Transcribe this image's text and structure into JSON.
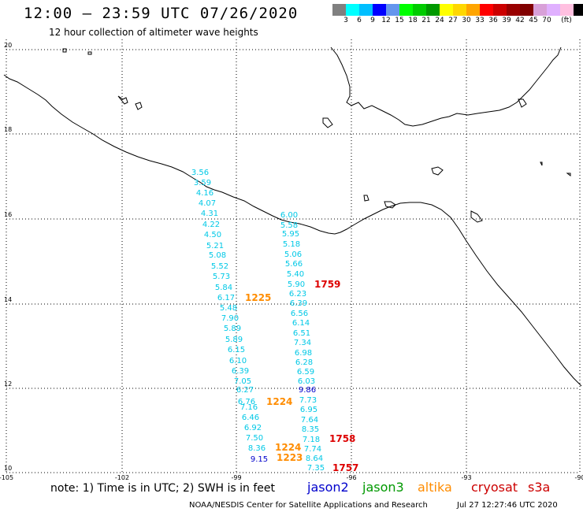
{
  "header": {
    "title": "12:00 – 23:59 UTC 07/26/2020",
    "subtitle": "12 hour collection of altimeter wave heights"
  },
  "colorbar": {
    "colors": [
      "#808080",
      "#00ffff",
      "#00bfff",
      "#0000ff",
      "#6495ed",
      "#00ff00",
      "#00cc00",
      "#009900",
      "#ffff00",
      "#ffd700",
      "#ffa500",
      "#ff0000",
      "#cc0000",
      "#990000",
      "#800000",
      "#d8a0d8",
      "#e0b0ff",
      "#ffc0e0",
      "#000000"
    ],
    "labels": [
      "3",
      "6",
      "9",
      "12",
      "15",
      "18",
      "21",
      "24",
      "27",
      "30",
      "33",
      "36",
      "39",
      "42",
      "45",
      "70",
      "(ft)"
    ]
  },
  "map": {
    "lat_labels": [
      "20",
      "18",
      "16",
      "14",
      "12",
      "10"
    ],
    "lon_labels": [
      "-105",
      "-102",
      "-99",
      "-96",
      "-93",
      "-90"
    ]
  },
  "tracks": [
    {
      "color": "#00c8e6",
      "points": [
        [
          "3.56",
          254,
          222
        ],
        [
          "3.59",
          257,
          235
        ],
        [
          "4.16",
          260,
          248
        ],
        [
          "4.07",
          263,
          261
        ],
        [
          "4.31",
          266,
          274
        ],
        [
          "4.22",
          268,
          288
        ],
        [
          "4.50",
          270,
          301
        ],
        [
          "5.21",
          273,
          315
        ],
        [
          "5.08",
          276,
          327
        ],
        [
          "5.52",
          279,
          341
        ],
        [
          "5.73",
          281,
          354
        ],
        [
          "5.84",
          284,
          368
        ],
        [
          "6.17",
          287,
          381
        ],
        [
          "5.48",
          290,
          394
        ],
        [
          "7.90",
          292,
          407
        ],
        [
          "5.89",
          295,
          420
        ],
        [
          "5.89",
          297,
          434
        ],
        [
          "6.15",
          300,
          447
        ],
        [
          "6.10",
          302,
          461
        ],
        [
          "6.39",
          305,
          474
        ],
        [
          "7.05",
          308,
          487
        ],
        [
          "6.27",
          311,
          498
        ],
        [
          "6.76",
          313,
          513
        ],
        [
          "7.16",
          316,
          520
        ],
        [
          "6.46",
          318,
          533
        ],
        [
          "6.92",
          321,
          546
        ],
        [
          "7.50",
          323,
          559
        ],
        [
          "8.36",
          326,
          572
        ]
      ]
    },
    {
      "color": "#00c8e6",
      "points": [
        [
          "6.00",
          367,
          276
        ],
        [
          "5.58",
          367,
          289
        ],
        [
          "5.95",
          369,
          300
        ],
        [
          "5.18",
          370,
          313
        ],
        [
          "5.06",
          372,
          326
        ],
        [
          "5.66",
          373,
          338
        ],
        [
          "5.40",
          375,
          351
        ],
        [
          "5.90",
          376,
          364
        ],
        [
          "6.23",
          378,
          376
        ],
        [
          "6.39",
          379,
          388
        ],
        [
          "6.56",
          380,
          401
        ],
        [
          "6.14",
          382,
          413
        ],
        [
          "6.51",
          383,
          426
        ],
        [
          "7.34",
          384,
          438
        ],
        [
          "6.98",
          385,
          451
        ],
        [
          "6.28",
          386,
          463
        ],
        [
          "6.59",
          388,
          475
        ],
        [
          "6.03",
          389,
          487
        ],
        [
          "9.86",
          390,
          498
        ],
        [
          "7.73",
          391,
          511
        ],
        [
          "6.95",
          392,
          523
        ],
        [
          "7.64",
          393,
          536
        ],
        [
          "8.35",
          394,
          548
        ],
        [
          "7.18",
          395,
          561
        ],
        [
          "7.74",
          397,
          573
        ],
        [
          "8.64",
          399,
          585
        ],
        [
          "7.35",
          401,
          597
        ]
      ]
    }
  ],
  "dark_blue_labels": [
    [
      "9.15",
      329,
      586
    ],
    [
      "9.86",
      390,
      498
    ]
  ],
  "time_labels": [
    {
      "text": "1225",
      "color": "#ff8c00",
      "x": 311,
      "y": 382
    },
    {
      "text": "1224",
      "color": "#ff8c00",
      "x": 338,
      "y": 514
    },
    {
      "text": "1224",
      "color": "#ff8c00",
      "x": 349,
      "y": 572
    },
    {
      "text": "1223",
      "color": "#ff8c00",
      "x": 351,
      "y": 585
    },
    {
      "text": "1759",
      "color": "#dd0000",
      "x": 399,
      "y": 365
    },
    {
      "text": "1758",
      "color": "#dd0000",
      "x": 418,
      "y": 561
    },
    {
      "text": "1757",
      "color": "#dd0000",
      "x": 422,
      "y": 598
    }
  ],
  "footer": {
    "note": "note:  1) Time is in UTC;  2) SWH is in feet",
    "satellites": [
      {
        "name": "jason2",
        "color": "#0000cc"
      },
      {
        "name": "jason3",
        "color": "#009900"
      },
      {
        "name": "altika",
        "color": "#ff8c00"
      },
      {
        "name": "cryosat",
        "color": "#cc0000"
      },
      {
        "name": "s3a",
        "color": "#cc0000"
      }
    ],
    "credit": "NOAA/NESDIS Center for Satellite Applications and Research",
    "timestamp": "Jul 27 12:27:46 UTC 2020"
  }
}
